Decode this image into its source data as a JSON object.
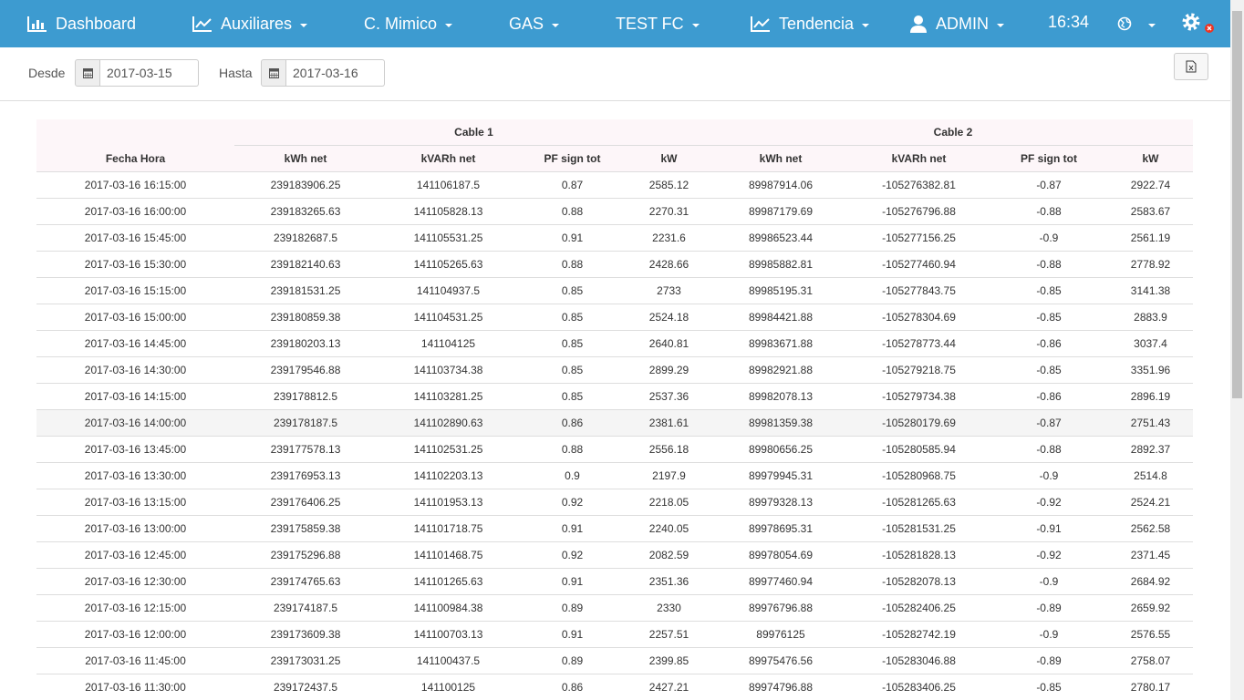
{
  "nav": {
    "items": [
      {
        "label": "Dashboard"
      },
      {
        "label": "Auxiliares"
      },
      {
        "label": "C. Mimico"
      },
      {
        "label": "GAS"
      },
      {
        "label": "TEST FC"
      },
      {
        "label": "Tendencia"
      },
      {
        "label": "ADMIN"
      }
    ],
    "time": "16:34"
  },
  "filters": {
    "desde": {
      "label": "Desde",
      "value": "2017-03-15"
    },
    "hasta": {
      "label": "Hasta",
      "value": "2017-03-16"
    }
  },
  "table": {
    "corner": "Fecha Hora",
    "groups": [
      "Cable 1",
      "Cable 2"
    ],
    "columns": [
      "kWh net",
      "kVARh net",
      "PF sign tot",
      "kW",
      "kWh net",
      "kVARh net",
      "PF sign tot",
      "kW"
    ],
    "rows": [
      [
        "2017-03-16 16:15:00",
        "239183906.25",
        "141106187.5",
        "0.87",
        "2585.12",
        "89987914.06",
        "-105276382.81",
        "-0.87",
        "2922.74"
      ],
      [
        "2017-03-16 16:00:00",
        "239183265.63",
        "141105828.13",
        "0.88",
        "2270.31",
        "89987179.69",
        "-105276796.88",
        "-0.88",
        "2583.67"
      ],
      [
        "2017-03-16 15:45:00",
        "239182687.5",
        "141105531.25",
        "0.91",
        "2231.6",
        "89986523.44",
        "-105277156.25",
        "-0.9",
        "2561.19"
      ],
      [
        "2017-03-16 15:30:00",
        "239182140.63",
        "141105265.63",
        "0.88",
        "2428.66",
        "89985882.81",
        "-105277460.94",
        "-0.88",
        "2778.92"
      ],
      [
        "2017-03-16 15:15:00",
        "239181531.25",
        "141104937.5",
        "0.85",
        "2733",
        "89985195.31",
        "-105277843.75",
        "-0.85",
        "3141.38"
      ],
      [
        "2017-03-16 15:00:00",
        "239180859.38",
        "141104531.25",
        "0.85",
        "2524.18",
        "89984421.88",
        "-105278304.69",
        "-0.85",
        "2883.9"
      ],
      [
        "2017-03-16 14:45:00",
        "239180203.13",
        "141104125",
        "0.85",
        "2640.81",
        "89983671.88",
        "-105278773.44",
        "-0.86",
        "3037.4"
      ],
      [
        "2017-03-16 14:30:00",
        "239179546.88",
        "141103734.38",
        "0.85",
        "2899.29",
        "89982921.88",
        "-105279218.75",
        "-0.85",
        "3351.96"
      ],
      [
        "2017-03-16 14:15:00",
        "239178812.5",
        "141103281.25",
        "0.85",
        "2537.36",
        "89982078.13",
        "-105279734.38",
        "-0.86",
        "2896.19"
      ],
      [
        "2017-03-16 14:00:00",
        "239178187.5",
        "141102890.63",
        "0.86",
        "2381.61",
        "89981359.38",
        "-105280179.69",
        "-0.87",
        "2751.43"
      ],
      [
        "2017-03-16 13:45:00",
        "239177578.13",
        "141102531.25",
        "0.88",
        "2556.18",
        "89980656.25",
        "-105280585.94",
        "-0.88",
        "2892.37"
      ],
      [
        "2017-03-16 13:30:00",
        "239176953.13",
        "141102203.13",
        "0.9",
        "2197.9",
        "89979945.31",
        "-105280968.75",
        "-0.9",
        "2514.8"
      ],
      [
        "2017-03-16 13:15:00",
        "239176406.25",
        "141101953.13",
        "0.92",
        "2218.05",
        "89979328.13",
        "-105281265.63",
        "-0.92",
        "2524.21"
      ],
      [
        "2017-03-16 13:00:00",
        "239175859.38",
        "141101718.75",
        "0.91",
        "2240.05",
        "89978695.31",
        "-105281531.25",
        "-0.91",
        "2562.58"
      ],
      [
        "2017-03-16 12:45:00",
        "239175296.88",
        "141101468.75",
        "0.92",
        "2082.59",
        "89978054.69",
        "-105281828.13",
        "-0.92",
        "2371.45"
      ],
      [
        "2017-03-16 12:30:00",
        "239174765.63",
        "141101265.63",
        "0.91",
        "2351.36",
        "89977460.94",
        "-105282078.13",
        "-0.9",
        "2684.92"
      ],
      [
        "2017-03-16 12:15:00",
        "239174187.5",
        "141100984.38",
        "0.89",
        "2330",
        "89976796.88",
        "-105282406.25",
        "-0.89",
        "2659.92"
      ],
      [
        "2017-03-16 12:00:00",
        "239173609.38",
        "141100703.13",
        "0.91",
        "2257.51",
        "89976125",
        "-105282742.19",
        "-0.9",
        "2576.55"
      ],
      [
        "2017-03-16 11:45:00",
        "239173031.25",
        "141100437.5",
        "0.89",
        "2399.85",
        "89975476.56",
        "-105283046.88",
        "-0.89",
        "2758.07"
      ],
      [
        "2017-03-16 11:30:00",
        "239172437.5",
        "141100125",
        "0.86",
        "2427.21",
        "89974796.88",
        "-105283406.25",
        "-0.85",
        "2780.17"
      ]
    ]
  }
}
